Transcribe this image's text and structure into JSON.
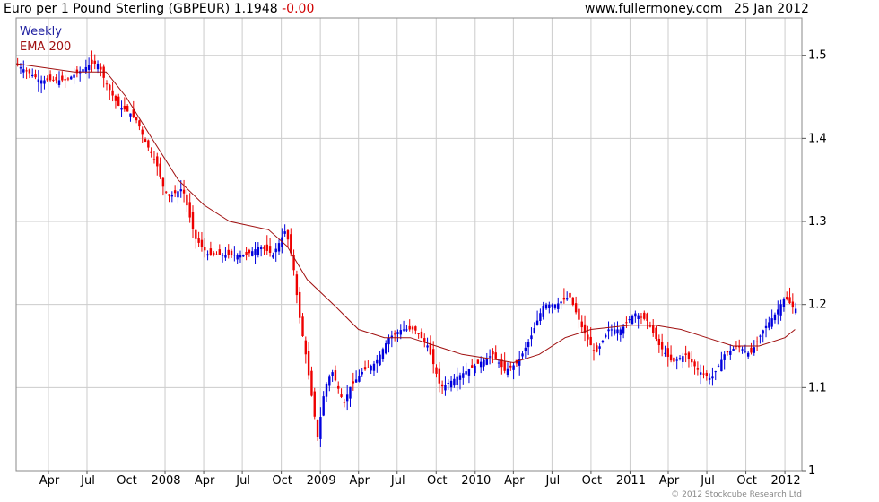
{
  "header": {
    "title": "Euro per 1 Pound Sterling (GBPEUR)",
    "last": "1.1948",
    "change": "-0.00",
    "site": "www.fullermoney.com",
    "date": "25 Jan 2012"
  },
  "copyright": "© 2012 Stockcube Research Ltd",
  "colors": {
    "up": "#0000dd",
    "down": "#ee0000",
    "ema": "#a01010",
    "grid": "#cccccc",
    "legend_weekly": "#2020a0",
    "legend_ema": "#a01010"
  },
  "chart_data": {
    "type": "line",
    "title": "Euro per 1 Pound Sterling (GBPEUR)",
    "legend": [
      "Weekly",
      "EMA 200"
    ],
    "legend_position": "top-left",
    "grid": true,
    "x_tick_labels": [
      "Apr",
      "Jul",
      "Oct",
      "2008",
      "Apr",
      "Jul",
      "Oct",
      "2009",
      "Apr",
      "Jul",
      "Oct",
      "2010",
      "Apr",
      "Jul",
      "Oct",
      "2011",
      "Apr",
      "Jul",
      "Oct",
      "2012"
    ],
    "xlim": [
      "2007-01-15",
      "2012-02-10"
    ],
    "y_ticks": [
      1,
      1.1,
      1.2,
      1.3,
      1.4,
      1.5
    ],
    "ylim": [
      1.0,
      1.545
    ],
    "series": [
      {
        "name": "Weekly",
        "points": [
          [
            "2007-01-15",
            1.49
          ],
          [
            "2007-02-15",
            1.48
          ],
          [
            "2007-03-15",
            1.47
          ],
          [
            "2007-04-15",
            1.47
          ],
          [
            "2007-05-15",
            1.47
          ],
          [
            "2007-06-15",
            1.48
          ],
          [
            "2007-07-15",
            1.49
          ],
          [
            "2007-08-01",
            1.49
          ],
          [
            "2007-08-15",
            1.47
          ],
          [
            "2007-09-15",
            1.44
          ],
          [
            "2007-10-15",
            1.43
          ],
          [
            "2007-11-01",
            1.42
          ],
          [
            "2007-11-15",
            1.4
          ],
          [
            "2007-12-15",
            1.37
          ],
          [
            "2008-01-01",
            1.34
          ],
          [
            "2008-01-15",
            1.33
          ],
          [
            "2008-02-15",
            1.34
          ],
          [
            "2008-03-15",
            1.28
          ],
          [
            "2008-04-15",
            1.26
          ],
          [
            "2008-05-15",
            1.26
          ],
          [
            "2008-06-15",
            1.26
          ],
          [
            "2008-07-15",
            1.26
          ],
          [
            "2008-08-15",
            1.27
          ],
          [
            "2008-09-15",
            1.26
          ],
          [
            "2008-10-15",
            1.29
          ],
          [
            "2008-11-01",
            1.25
          ],
          [
            "2008-11-15",
            1.19
          ],
          [
            "2008-12-01",
            1.14
          ],
          [
            "2008-12-29",
            1.04
          ],
          [
            "2009-01-15",
            1.1
          ],
          [
            "2009-02-01",
            1.12
          ],
          [
            "2009-03-01",
            1.08
          ],
          [
            "2009-03-15",
            1.1
          ],
          [
            "2009-04-15",
            1.12
          ],
          [
            "2009-05-15",
            1.13
          ],
          [
            "2009-06-15",
            1.16
          ],
          [
            "2009-07-15",
            1.17
          ],
          [
            "2009-08-15",
            1.17
          ],
          [
            "2009-09-15",
            1.15
          ],
          [
            "2009-10-15",
            1.1
          ],
          [
            "2009-11-15",
            1.11
          ],
          [
            "2009-12-15",
            1.12
          ],
          [
            "2010-01-15",
            1.13
          ],
          [
            "2010-02-15",
            1.14
          ],
          [
            "2010-03-15",
            1.12
          ],
          [
            "2010-04-15",
            1.13
          ],
          [
            "2010-05-15",
            1.16
          ],
          [
            "2010-06-15",
            1.2
          ],
          [
            "2010-07-15",
            1.2
          ],
          [
            "2010-08-15",
            1.21
          ],
          [
            "2010-09-15",
            1.17
          ],
          [
            "2010-10-15",
            1.14
          ],
          [
            "2010-11-15",
            1.17
          ],
          [
            "2010-12-15",
            1.17
          ],
          [
            "2011-01-15",
            1.19
          ],
          [
            "2011-02-15",
            1.18
          ],
          [
            "2011-03-15",
            1.15
          ],
          [
            "2011-04-15",
            1.13
          ],
          [
            "2011-05-15",
            1.14
          ],
          [
            "2011-06-15",
            1.12
          ],
          [
            "2011-07-15",
            1.11
          ],
          [
            "2011-08-15",
            1.14
          ],
          [
            "2011-09-15",
            1.15
          ],
          [
            "2011-10-15",
            1.14
          ],
          [
            "2011-11-15",
            1.17
          ],
          [
            "2011-12-15",
            1.19
          ],
          [
            "2012-01-05",
            1.21
          ],
          [
            "2012-01-25",
            1.1948
          ]
        ]
      },
      {
        "name": "EMA 200",
        "points": [
          [
            "2007-01-15",
            1.49
          ],
          [
            "2007-06-01",
            1.48
          ],
          [
            "2007-08-15",
            1.48
          ],
          [
            "2007-10-01",
            1.45
          ],
          [
            "2007-12-01",
            1.4
          ],
          [
            "2008-02-01",
            1.35
          ],
          [
            "2008-04-01",
            1.32
          ],
          [
            "2008-06-01",
            1.3
          ],
          [
            "2008-09-01",
            1.29
          ],
          [
            "2008-10-15",
            1.27
          ],
          [
            "2008-12-01",
            1.23
          ],
          [
            "2009-02-01",
            1.2
          ],
          [
            "2009-04-01",
            1.17
          ],
          [
            "2009-06-01",
            1.16
          ],
          [
            "2009-08-01",
            1.16
          ],
          [
            "2009-10-01",
            1.15
          ],
          [
            "2009-12-01",
            1.14
          ],
          [
            "2010-02-01",
            1.135
          ],
          [
            "2010-04-01",
            1.13
          ],
          [
            "2010-06-01",
            1.14
          ],
          [
            "2010-08-01",
            1.16
          ],
          [
            "2010-10-01",
            1.17
          ],
          [
            "2011-01-01",
            1.175
          ],
          [
            "2011-03-01",
            1.175
          ],
          [
            "2011-05-01",
            1.17
          ],
          [
            "2011-07-01",
            1.16
          ],
          [
            "2011-09-01",
            1.15
          ],
          [
            "2011-11-01",
            1.15
          ],
          [
            "2012-01-01",
            1.16
          ],
          [
            "2012-01-25",
            1.17
          ]
        ]
      }
    ]
  }
}
